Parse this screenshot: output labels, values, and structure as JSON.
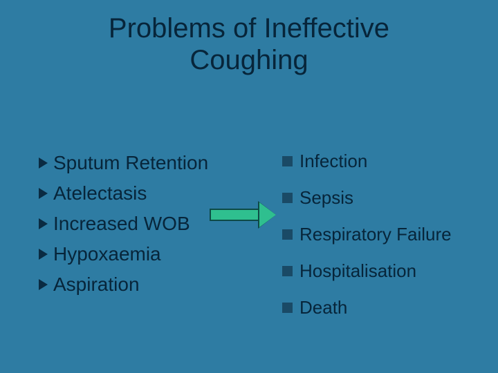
{
  "title": "Problems of Ineffective\nCoughing",
  "background_color": "#2e7ca3",
  "text_color": "#07253a",
  "left": {
    "bullet_color": "#0a2b42",
    "font_size_pt": 28,
    "items": [
      {
        "label": "Sputum Retention"
      },
      {
        "label": "Atelectasis"
      },
      {
        "label": "Increased WOB"
      },
      {
        "label": "Hypoxaemia"
      },
      {
        "label": "Aspiration"
      }
    ]
  },
  "right": {
    "bullet_color": "#1a4a66",
    "font_size_pt": 26,
    "items": [
      {
        "label": "Infection"
      },
      {
        "label": "Sepsis"
      },
      {
        "label": "Respiratory Failure"
      },
      {
        "label": "Hospitalisation"
      },
      {
        "label": "Death"
      }
    ]
  },
  "arrow": {
    "fill": "#2fbf8f",
    "border": "#0d4a46"
  }
}
